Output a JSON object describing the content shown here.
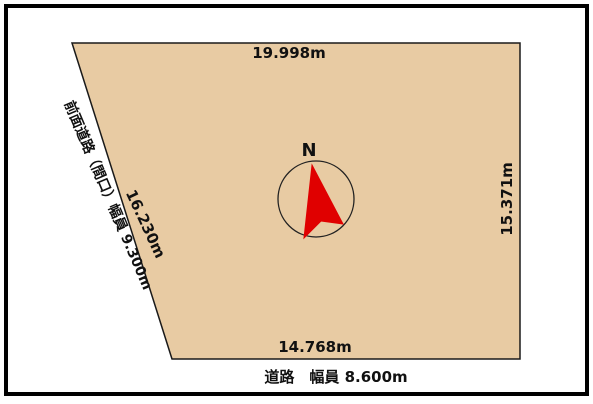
{
  "plot": {
    "colors": {
      "frame": "#000000",
      "lot_fill": "#E8CBA3",
      "lot_border": "#1a1a1a",
      "arrow": "#E00000"
    },
    "labels": {
      "top_edge": "19.998m",
      "right_edge": "15.371m",
      "left_edge": "16.230m",
      "bottom_edge": "14.768m",
      "front_road": "前面道路（間口）幅員 9.300m",
      "bottom_road": "道路　幅員 8.600m"
    },
    "compass": {
      "north_label": "N",
      "icon": "north-arrow-icon"
    }
  }
}
